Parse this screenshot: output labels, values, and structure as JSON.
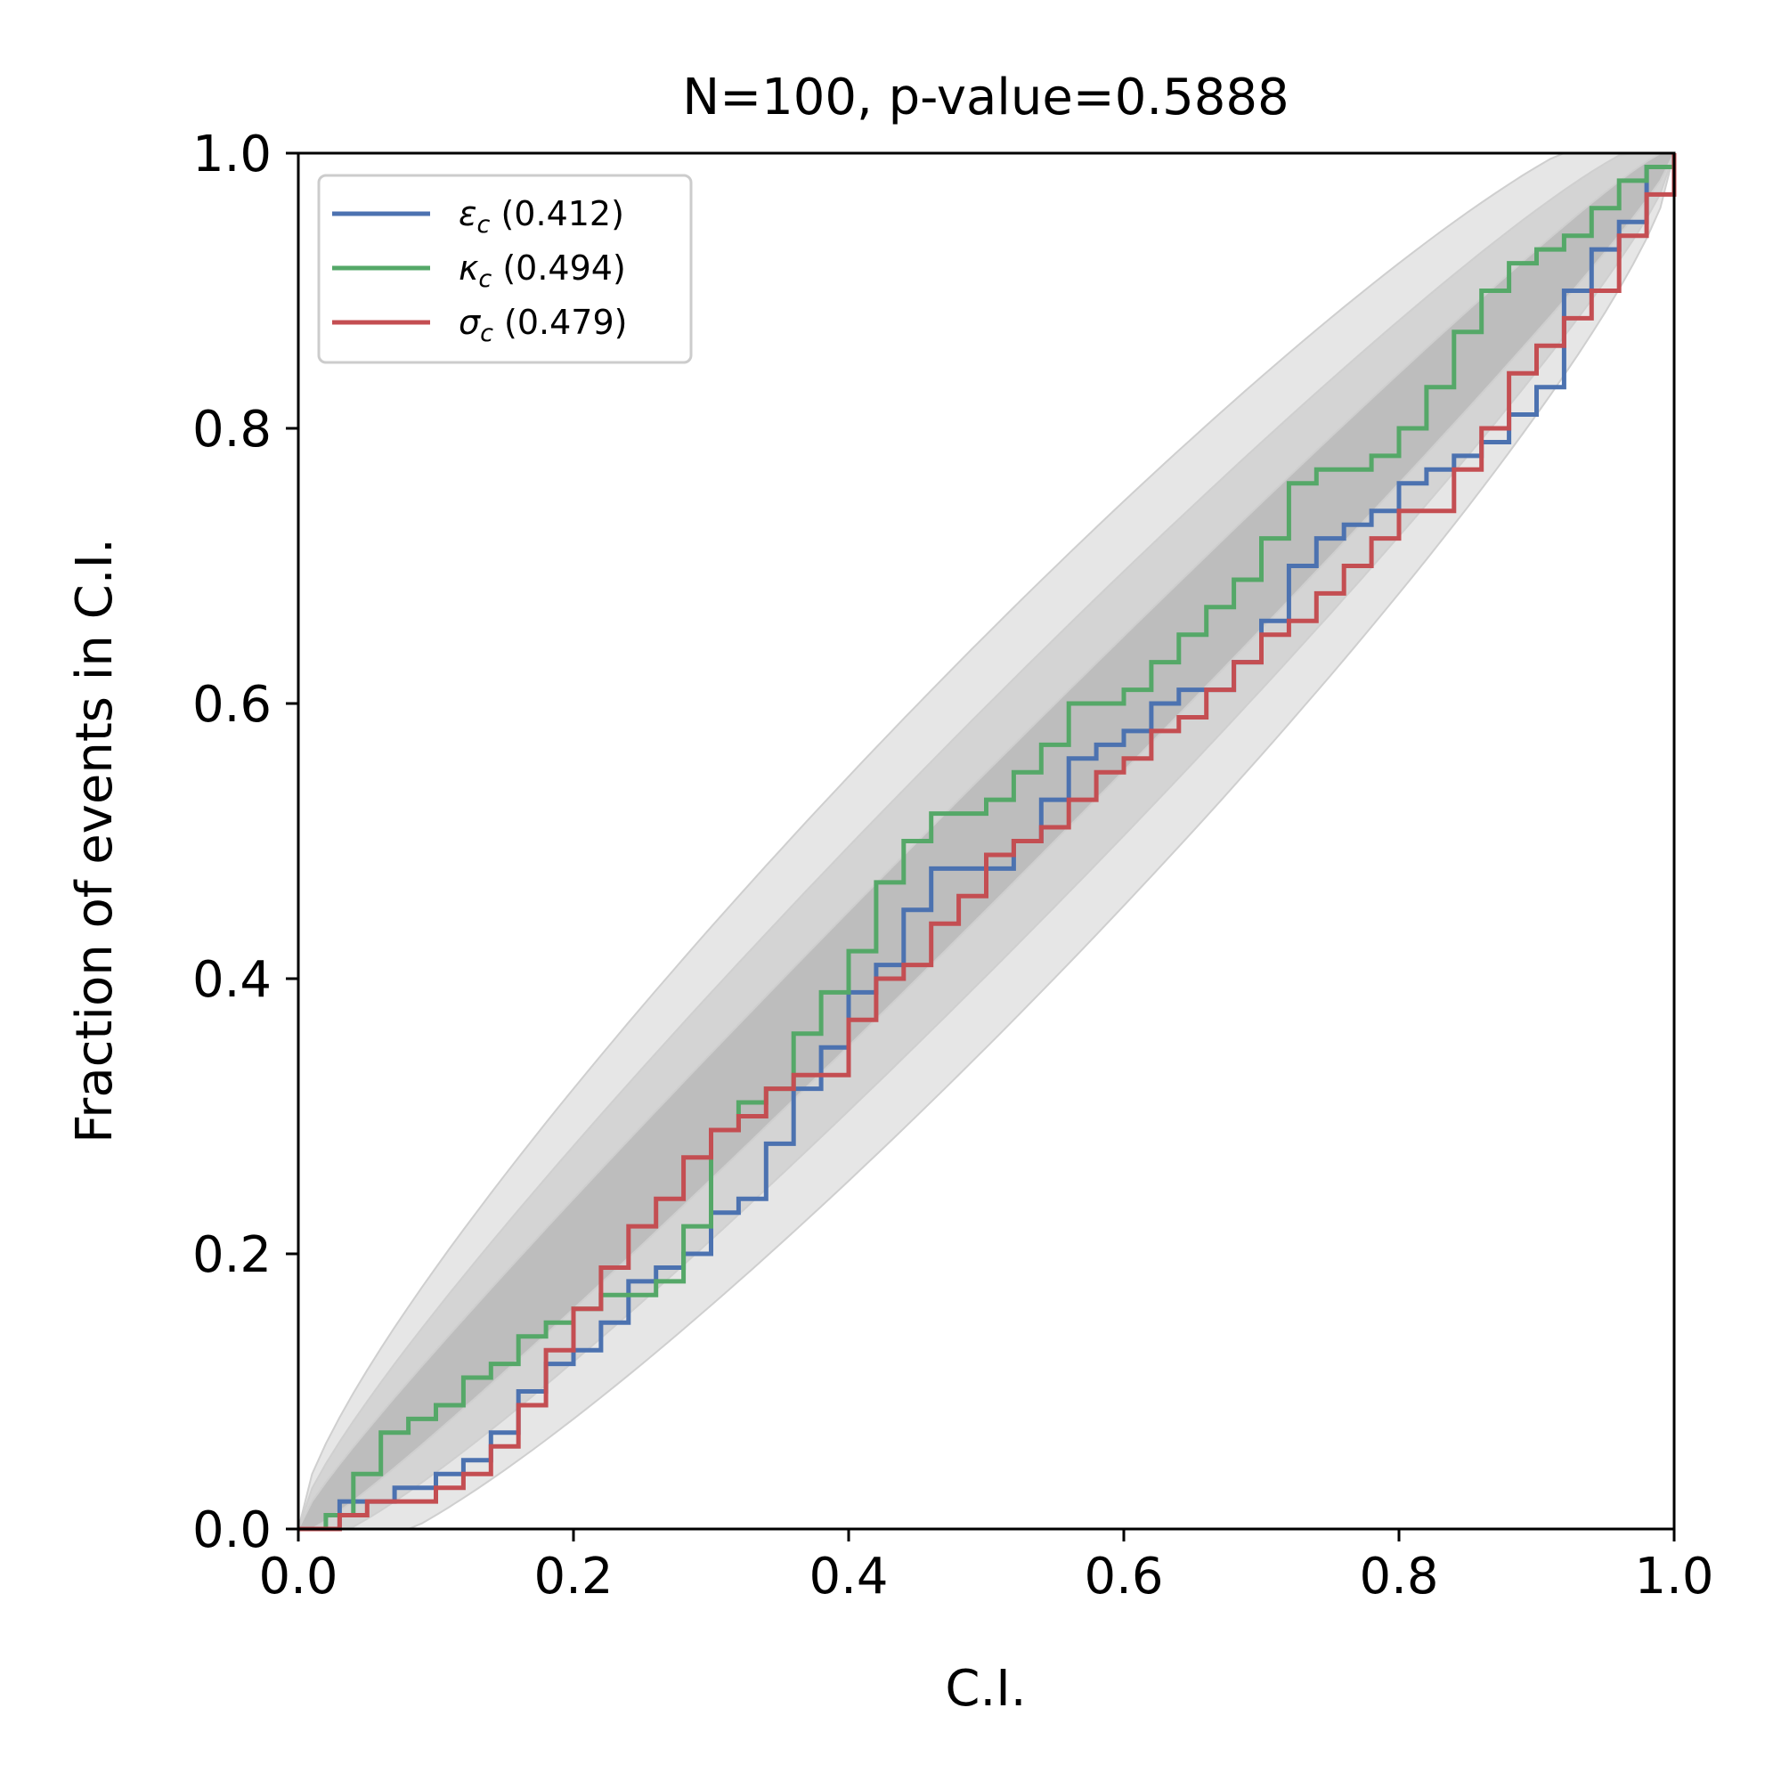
{
  "chart_data": {
    "type": "line",
    "title": "N=100, p-value=0.5888",
    "xlabel": "C.I.",
    "ylabel": "Fraction of events in C.I.",
    "xlim": [
      0,
      1
    ],
    "ylim": [
      0,
      1
    ],
    "xticks": [
      "0.0",
      "0.2",
      "0.4",
      "0.6",
      "0.8",
      "1.0"
    ],
    "yticks": [
      "0.0",
      "0.2",
      "0.4",
      "0.6",
      "0.8",
      "1.0"
    ],
    "grid": false,
    "legend_position": "upper-left",
    "n_events": 100,
    "confidence_bands": {
      "description": "binomial confidence intervals around the diagonal",
      "levels": [
        0.68,
        0.95,
        0.997
      ],
      "colors": [
        "#bdbdbd",
        "#d4d4d4",
        "#e6e6e6"
      ]
    },
    "series": [
      {
        "name": "ε_c",
        "symbol": "ε",
        "subscript": "c",
        "pvalue_label": "(0.412)",
        "color": "#4c72b0",
        "x": [
          0.0,
          0.03,
          0.05,
          0.07,
          0.1,
          0.12,
          0.14,
          0.16,
          0.18,
          0.2,
          0.22,
          0.24,
          0.26,
          0.28,
          0.3,
          0.32,
          0.34,
          0.36,
          0.38,
          0.4,
          0.42,
          0.44,
          0.46,
          0.48,
          0.5,
          0.52,
          0.54,
          0.56,
          0.58,
          0.6,
          0.62,
          0.64,
          0.66,
          0.68,
          0.7,
          0.72,
          0.74,
          0.76,
          0.78,
          0.8,
          0.82,
          0.84,
          0.86,
          0.88,
          0.9,
          0.92,
          0.94,
          0.96,
          0.98,
          1.0
        ],
        "y": [
          0.0,
          0.02,
          0.02,
          0.03,
          0.04,
          0.05,
          0.07,
          0.1,
          0.12,
          0.13,
          0.15,
          0.18,
          0.19,
          0.2,
          0.23,
          0.24,
          0.28,
          0.32,
          0.35,
          0.39,
          0.41,
          0.45,
          0.48,
          0.48,
          0.48,
          0.5,
          0.53,
          0.56,
          0.57,
          0.58,
          0.6,
          0.61,
          0.61,
          0.63,
          0.66,
          0.7,
          0.72,
          0.73,
          0.74,
          0.76,
          0.77,
          0.78,
          0.79,
          0.81,
          0.83,
          0.9,
          0.93,
          0.95,
          0.99,
          1.0
        ]
      },
      {
        "name": "κ_c",
        "symbol": "κ",
        "subscript": "c",
        "pvalue_label": "(0.494)",
        "color": "#55a868",
        "x": [
          0.0,
          0.02,
          0.04,
          0.06,
          0.08,
          0.1,
          0.12,
          0.14,
          0.16,
          0.18,
          0.2,
          0.22,
          0.24,
          0.26,
          0.28,
          0.3,
          0.32,
          0.34,
          0.36,
          0.38,
          0.4,
          0.42,
          0.44,
          0.46,
          0.48,
          0.5,
          0.52,
          0.54,
          0.56,
          0.58,
          0.6,
          0.62,
          0.64,
          0.66,
          0.68,
          0.7,
          0.72,
          0.74,
          0.76,
          0.78,
          0.8,
          0.82,
          0.84,
          0.86,
          0.88,
          0.9,
          0.92,
          0.94,
          0.96,
          0.98,
          1.0
        ],
        "y": [
          0.0,
          0.01,
          0.04,
          0.07,
          0.08,
          0.09,
          0.11,
          0.12,
          0.14,
          0.15,
          0.16,
          0.17,
          0.17,
          0.18,
          0.22,
          0.29,
          0.31,
          0.32,
          0.36,
          0.39,
          0.42,
          0.47,
          0.5,
          0.52,
          0.52,
          0.53,
          0.55,
          0.57,
          0.6,
          0.6,
          0.61,
          0.63,
          0.65,
          0.67,
          0.69,
          0.72,
          0.76,
          0.77,
          0.77,
          0.78,
          0.8,
          0.83,
          0.87,
          0.9,
          0.92,
          0.93,
          0.94,
          0.96,
          0.98,
          0.99,
          1.0
        ]
      },
      {
        "name": "σ_c",
        "symbol": "σ",
        "subscript": "c",
        "pvalue_label": "(0.479)",
        "color": "#c44e52",
        "x": [
          0.0,
          0.03,
          0.05,
          0.07,
          0.1,
          0.12,
          0.14,
          0.16,
          0.18,
          0.2,
          0.22,
          0.24,
          0.26,
          0.28,
          0.3,
          0.32,
          0.34,
          0.36,
          0.38,
          0.4,
          0.42,
          0.44,
          0.46,
          0.48,
          0.5,
          0.52,
          0.54,
          0.56,
          0.58,
          0.6,
          0.62,
          0.64,
          0.66,
          0.68,
          0.7,
          0.72,
          0.74,
          0.76,
          0.78,
          0.8,
          0.82,
          0.84,
          0.86,
          0.88,
          0.9,
          0.92,
          0.94,
          0.96,
          0.98,
          1.0
        ],
        "y": [
          0.0,
          0.01,
          0.02,
          0.02,
          0.03,
          0.04,
          0.06,
          0.09,
          0.13,
          0.16,
          0.19,
          0.22,
          0.24,
          0.27,
          0.29,
          0.3,
          0.32,
          0.33,
          0.33,
          0.37,
          0.4,
          0.41,
          0.44,
          0.46,
          0.49,
          0.5,
          0.51,
          0.53,
          0.55,
          0.56,
          0.58,
          0.59,
          0.61,
          0.63,
          0.65,
          0.66,
          0.68,
          0.7,
          0.72,
          0.74,
          0.74,
          0.77,
          0.8,
          0.84,
          0.86,
          0.88,
          0.9,
          0.94,
          0.97,
          1.0
        ]
      }
    ]
  }
}
